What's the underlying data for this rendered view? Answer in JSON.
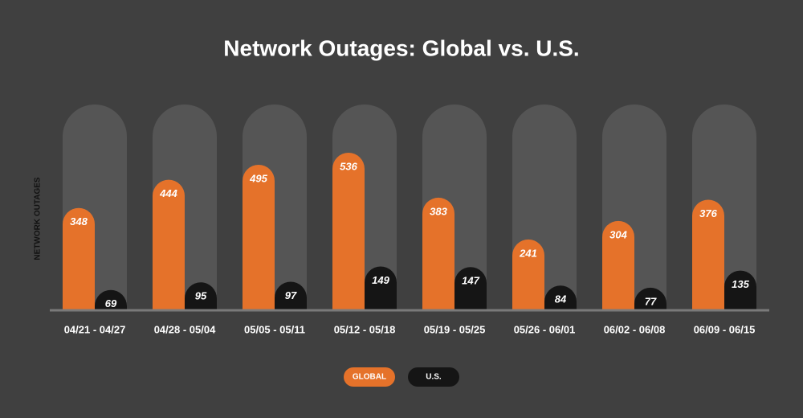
{
  "chart_data": {
    "type": "bar",
    "title": "Network Outages: Global vs. U.S.",
    "y_label": "NETWORK OUTAGES",
    "categories": [
      "04/21 - 04/27",
      "04/28 - 05/04",
      "05/05 - 05/11",
      "05/12 - 05/18",
      "05/19 - 05/25",
      "05/26 - 06/01",
      "06/02 - 06/08",
      "06/09 - 06/15"
    ],
    "series": [
      {
        "name": "GLOBAL",
        "color": "#e5722a",
        "values": [
          348,
          444,
          495,
          536,
          383,
          241,
          304,
          376
        ]
      },
      {
        "name": "U.S.",
        "color": "#151515",
        "values": [
          69,
          95,
          97,
          149,
          147,
          84,
          77,
          135
        ]
      }
    ],
    "ylim": [
      0,
      700
    ]
  }
}
